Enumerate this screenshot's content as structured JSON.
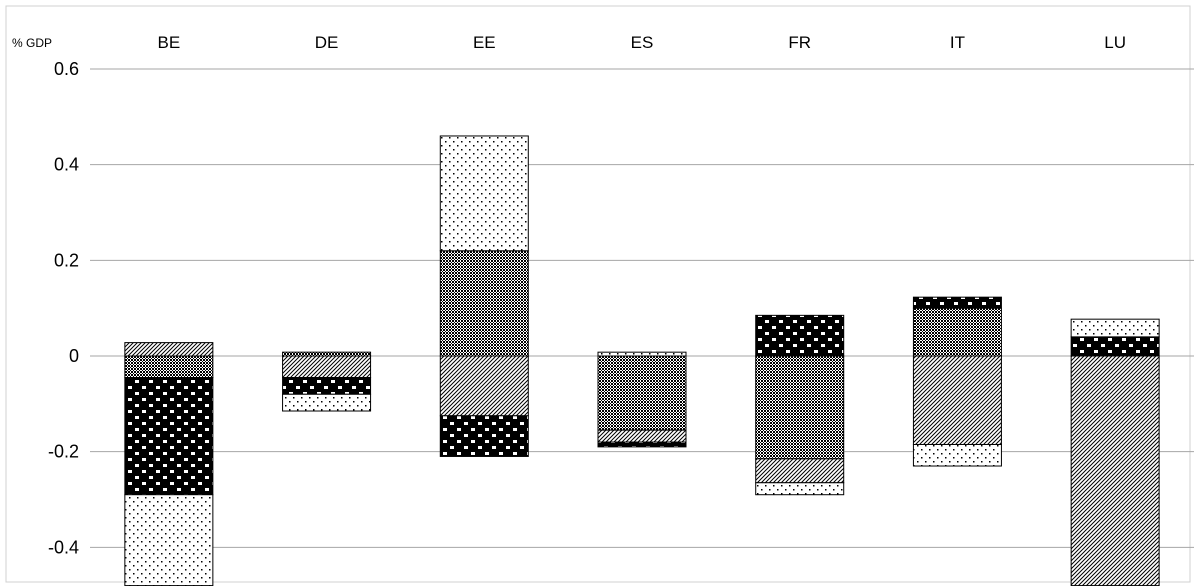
{
  "chart_data": {
    "type": "bar",
    "stacked": true,
    "ylabel": "% GDP",
    "ylim": [
      -0.48,
      0.6
    ],
    "yticks": [
      0.6,
      0.4,
      0.2,
      0,
      -0.2,
      -0.4
    ],
    "ytick_labels": [
      "0.6",
      "0.4",
      "0.2",
      "0",
      "-0.2",
      "-0.4"
    ],
    "categories": [
      "BE",
      "DE",
      "EE",
      "ES",
      "FR",
      "IT",
      "LU"
    ],
    "grid": true,
    "legend": "none",
    "bars": [
      {
        "category": "BE",
        "segments": [
          {
            "pattern": "diag",
            "from": 0.0,
            "to": 0.028
          },
          {
            "pattern": "cross",
            "from": 0.0,
            "to": -0.045
          },
          {
            "pattern": "black-dots",
            "from": -0.045,
            "to": -0.29
          },
          {
            "pattern": "light-dots",
            "from": -0.29,
            "to": -0.48
          }
        ]
      },
      {
        "category": "DE",
        "segments": [
          {
            "pattern": "cross",
            "from": 0.0,
            "to": 0.008
          },
          {
            "pattern": "diag",
            "from": 0.0,
            "to": -0.045
          },
          {
            "pattern": "black-dots",
            "from": -0.045,
            "to": -0.08
          },
          {
            "pattern": "light-dots",
            "from": -0.08,
            "to": -0.115
          }
        ]
      },
      {
        "category": "EE",
        "segments": [
          {
            "pattern": "cross",
            "from": 0.0,
            "to": 0.22
          },
          {
            "pattern": "light-dots",
            "from": 0.22,
            "to": 0.46
          },
          {
            "pattern": "diag",
            "from": 0.0,
            "to": -0.125
          },
          {
            "pattern": "black-dots",
            "from": -0.125,
            "to": -0.21
          }
        ]
      },
      {
        "category": "ES",
        "segments": [
          {
            "pattern": "light-dots",
            "from": 0.0,
            "to": 0.008
          },
          {
            "pattern": "cross",
            "from": 0.0,
            "to": -0.155
          },
          {
            "pattern": "diag",
            "from": -0.155,
            "to": -0.18
          },
          {
            "pattern": "black-dots",
            "from": -0.18,
            "to": -0.19
          }
        ]
      },
      {
        "category": "FR",
        "segments": [
          {
            "pattern": "black-dots",
            "from": 0.0,
            "to": 0.085
          },
          {
            "pattern": "cross",
            "from": 0.0,
            "to": -0.215
          },
          {
            "pattern": "diag",
            "from": -0.215,
            "to": -0.265
          },
          {
            "pattern": "light-dots",
            "from": -0.265,
            "to": -0.29
          }
        ]
      },
      {
        "category": "IT",
        "segments": [
          {
            "pattern": "cross",
            "from": 0.0,
            "to": 0.1
          },
          {
            "pattern": "black-dots",
            "from": 0.1,
            "to": 0.123
          },
          {
            "pattern": "diag",
            "from": 0.0,
            "to": -0.185
          },
          {
            "pattern": "light-dots",
            "from": -0.185,
            "to": -0.23
          }
        ]
      },
      {
        "category": "LU",
        "segments": [
          {
            "pattern": "black-dots",
            "from": 0.0,
            "to": 0.04
          },
          {
            "pattern": "light-dots",
            "from": 0.04,
            "to": 0.077
          },
          {
            "pattern": "diag",
            "from": 0.0,
            "to": -0.48
          }
        ]
      }
    ]
  }
}
